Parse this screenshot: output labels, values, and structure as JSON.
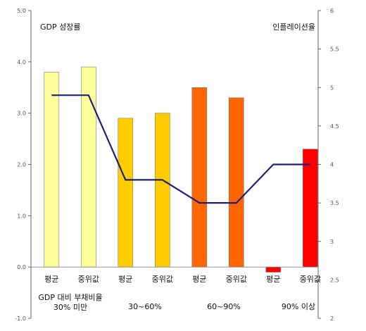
{
  "chart_data": {
    "type": "bar",
    "corner_labels": {
      "left": "GDP 성장률",
      "right": "인플레이션율"
    },
    "categories": [
      "평균",
      "중위값",
      "평균",
      "중위값",
      "평균",
      "중위값",
      "평균",
      "중위값"
    ],
    "groups": [
      {
        "label_lines": [
          "GDP 대비 부채비율",
          "30% 미만"
        ]
      },
      {
        "label_lines": [
          "30~60%"
        ]
      },
      {
        "label_lines": [
          "60~90%"
        ]
      },
      {
        "label_lines": [
          "90% 이상"
        ]
      }
    ],
    "series": [
      {
        "type": "bar",
        "axis": "left",
        "values": [
          3.8,
          3.9,
          2.9,
          3.0,
          3.5,
          3.3,
          -0.1,
          2.3
        ],
        "colors": [
          "#FFFF99",
          "#FFFF99",
          "#FFCC00",
          "#FFCC00",
          "#FF6600",
          "#FF6600",
          "#FF0000",
          "#FF0000"
        ]
      },
      {
        "type": "line",
        "axis": "right",
        "values": [
          4.9,
          4.9,
          3.8,
          3.8,
          3.5,
          3.5,
          4.0,
          4.0
        ],
        "color": "#1F1F7A"
      }
    ],
    "y_left": {
      "min": -1.0,
      "max": 5.0,
      "ticks": [
        "-1.0",
        "0.0",
        "1.0",
        "2.0",
        "3.0",
        "4.0",
        "5.0"
      ]
    },
    "y_right": {
      "min": 2,
      "max": 6,
      "ticks": [
        "2",
        "2.5",
        "3",
        "3.5",
        "4",
        "4.5",
        "5",
        "5.5",
        "6"
      ]
    },
    "grid": false,
    "legend": "none"
  }
}
